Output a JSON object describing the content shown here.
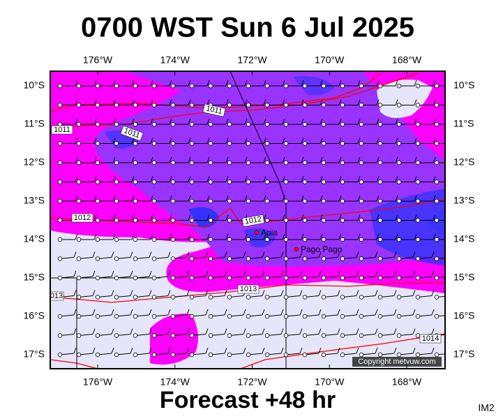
{
  "title": "0700 WST Sun 6 Jul 2025",
  "footer": "Forecast +48 hr",
  "image_id": "IM2",
  "copyright": "Copyright metvuw.com",
  "lon_labels": [
    "176°W",
    "174°W",
    "172°W",
    "170°W",
    "168°W"
  ],
  "lat_labels": [
    "10°S",
    "11°S",
    "12°S",
    "13°S",
    "14°S",
    "15°S",
    "16°S",
    "17°S"
  ],
  "places": [
    "Apia",
    "Pago Pago"
  ],
  "isobar_labels": [
    "1011",
    "1011",
    "1011",
    "1012",
    "1012",
    "1013",
    "013",
    "1014"
  ]
}
